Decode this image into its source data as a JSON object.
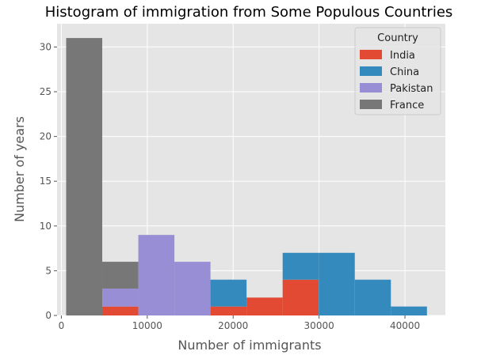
{
  "chart_data": {
    "type": "bar",
    "stacked": true,
    "title": "Histogram of immigration from Some Populous Countries",
    "xlabel": "Number of immigrants",
    "ylabel": "Number of years",
    "xlim": [
      -500,
      44700
    ],
    "ylim": [
      0,
      32.6
    ],
    "xticks": [
      0,
      10000,
      20000,
      30000,
      40000
    ],
    "yticks": [
      0,
      5,
      10,
      15,
      20,
      25,
      30
    ],
    "grid": true,
    "legend_title": "Country",
    "legend_position": "top-right",
    "bin_edges": [
      560,
      4760,
      8960,
      13160,
      17360,
      21560,
      25760,
      29960,
      34160,
      38360,
      42560
    ],
    "series": [
      {
        "name": "India",
        "color": "#E24A33",
        "values": [
          0,
          1,
          0,
          0,
          1,
          2,
          4,
          0,
          0,
          0
        ]
      },
      {
        "name": "China",
        "color": "#348ABD",
        "values": [
          0,
          0,
          0,
          0,
          3,
          0,
          3,
          7,
          4,
          1
        ]
      },
      {
        "name": "Pakistan",
        "color": "#988ED5",
        "values": [
          0,
          2,
          9,
          6,
          0,
          0,
          0,
          0,
          0,
          0
        ]
      },
      {
        "name": "France",
        "color": "#777777",
        "values": [
          31,
          3,
          0,
          0,
          0,
          0,
          0,
          0,
          0,
          0
        ]
      }
    ]
  }
}
